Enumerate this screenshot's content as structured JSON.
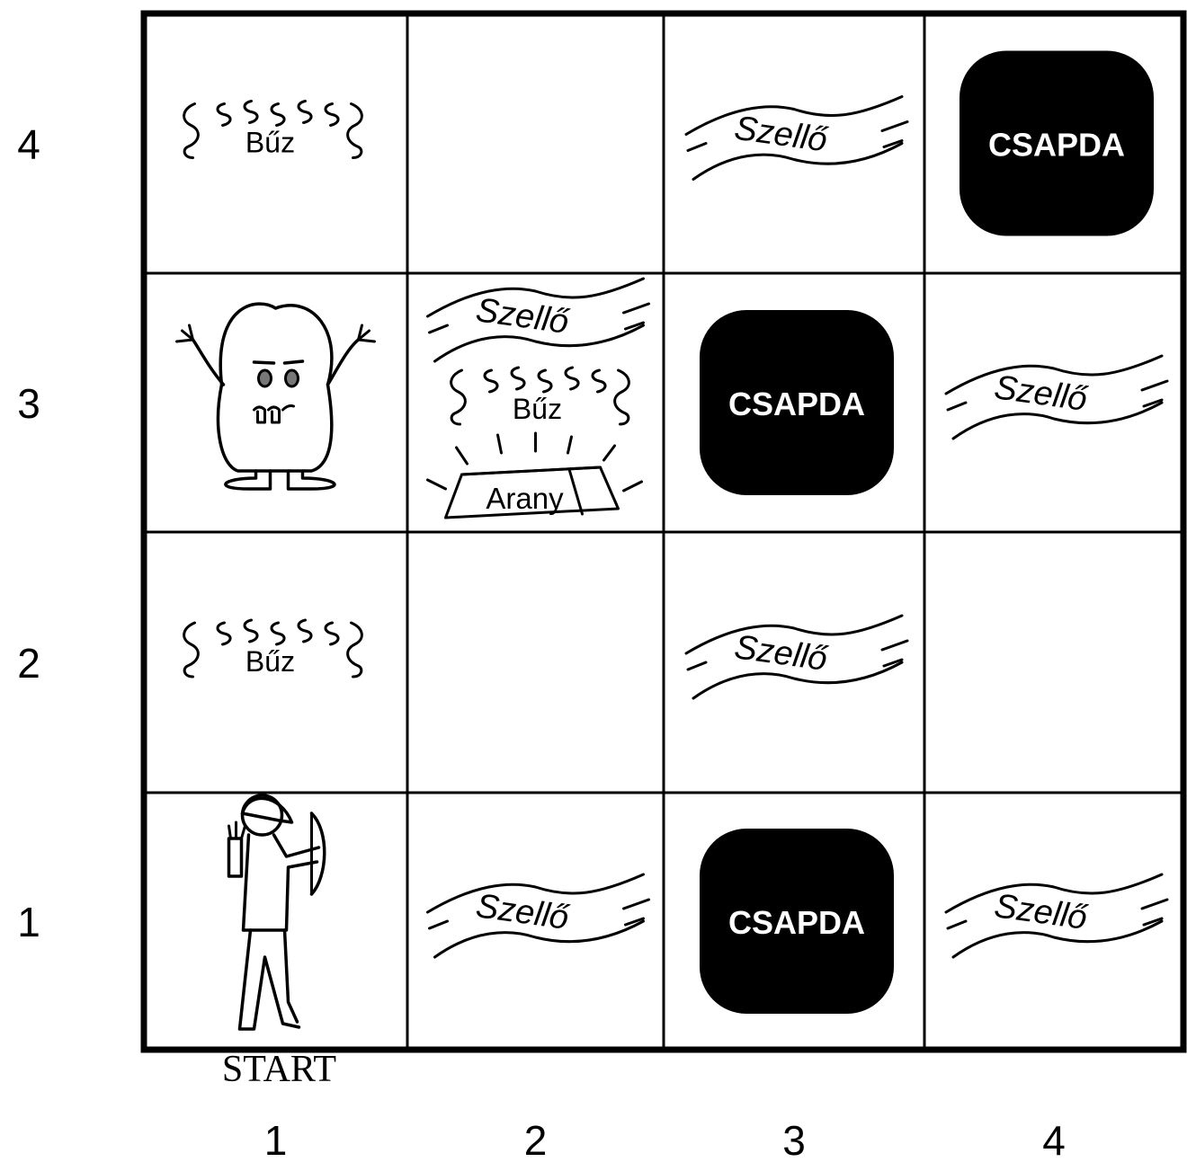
{
  "grid": {
    "col_labels": [
      "1",
      "2",
      "3",
      "4"
    ],
    "row_labels": [
      "4",
      "3",
      "2",
      "1"
    ]
  },
  "labels": {
    "stench": "Bűz",
    "breeze": "Szellő",
    "pit": "CSAPDA",
    "gold": "Arany",
    "start": "START"
  },
  "colors": {
    "ink": "#000000",
    "pit_fill": "#000000",
    "pit_text": "#ffffff",
    "background": "#ffffff"
  },
  "cells": [
    {
      "col": "1",
      "row": "4",
      "items": [
        "stench"
      ]
    },
    {
      "col": "2",
      "row": "4",
      "items": []
    },
    {
      "col": "3",
      "row": "4",
      "items": [
        "breeze"
      ]
    },
    {
      "col": "4",
      "row": "4",
      "items": [
        "pit"
      ]
    },
    {
      "col": "1",
      "row": "3",
      "items": [
        "wumpus"
      ]
    },
    {
      "col": "2",
      "row": "3",
      "items": [
        "breeze",
        "stench",
        "gold"
      ]
    },
    {
      "col": "3",
      "row": "3",
      "items": [
        "pit"
      ]
    },
    {
      "col": "4",
      "row": "3",
      "items": [
        "breeze"
      ]
    },
    {
      "col": "1",
      "row": "2",
      "items": [
        "stench"
      ]
    },
    {
      "col": "2",
      "row": "2",
      "items": []
    },
    {
      "col": "3",
      "row": "2",
      "items": [
        "breeze"
      ]
    },
    {
      "col": "4",
      "row": "2",
      "items": []
    },
    {
      "col": "1",
      "row": "1",
      "items": [
        "agent",
        "start"
      ]
    },
    {
      "col": "2",
      "row": "1",
      "items": [
        "breeze"
      ]
    },
    {
      "col": "3",
      "row": "1",
      "items": [
        "pit"
      ]
    },
    {
      "col": "4",
      "row": "1",
      "items": [
        "breeze"
      ]
    }
  ],
  "icons": {
    "wumpus": "wumpus-monster-icon",
    "agent": "archer-agent-icon",
    "gold": "gold-bar-icon",
    "stench": "stench-wavy-icon",
    "breeze": "breeze-wind-icon",
    "pit": "pit-black-box-icon"
  }
}
